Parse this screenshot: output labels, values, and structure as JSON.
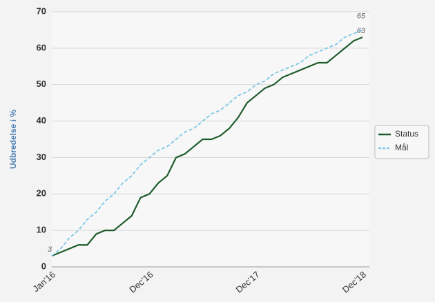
{
  "chart_data": {
    "type": "line",
    "ylabel": "Udbredelse i %",
    "categories": [
      "Jan'16",
      null,
      null,
      null,
      null,
      null,
      null,
      null,
      null,
      null,
      null,
      "Dec'16",
      null,
      null,
      null,
      null,
      null,
      null,
      null,
      null,
      null,
      null,
      null,
      "Dec'17",
      null,
      null,
      null,
      null,
      null,
      null,
      null,
      null,
      null,
      null,
      null,
      "Dec'18"
    ],
    "series": [
      {
        "name": "Status",
        "color": "#1e5b2c",
        "dashed": false,
        "values": [
          3,
          4,
          5,
          6,
          6,
          9,
          10,
          10,
          12,
          14,
          19,
          20,
          23,
          25,
          30,
          31,
          33,
          35,
          35,
          36,
          38,
          41,
          45,
          47,
          49,
          50,
          52,
          53,
          54,
          55,
          56,
          56,
          58,
          60,
          62,
          63
        ],
        "value_labels": [
          "3",
          null,
          null,
          null,
          null,
          null,
          null,
          null,
          null,
          null,
          null,
          null,
          null,
          null,
          null,
          null,
          null,
          null,
          null,
          null,
          null,
          null,
          null,
          null,
          null,
          null,
          null,
          null,
          null,
          null,
          null,
          null,
          null,
          null,
          null,
          "63"
        ]
      },
      {
        "name": "Mål",
        "color": "#7cc6e6",
        "dashed": true,
        "values": [
          3,
          5,
          8,
          10,
          13,
          15,
          18,
          20,
          23,
          25,
          28,
          30,
          32,
          33,
          35,
          37,
          38,
          40,
          42,
          43,
          45,
          47,
          48,
          50,
          51,
          53,
          54,
          55,
          56,
          58,
          59,
          60,
          61,
          63,
          64,
          65
        ],
        "value_labels": [
          null,
          null,
          null,
          null,
          null,
          null,
          null,
          null,
          null,
          null,
          null,
          null,
          null,
          null,
          null,
          null,
          null,
          null,
          null,
          null,
          null,
          null,
          null,
          null,
          null,
          null,
          null,
          null,
          null,
          null,
          null,
          null,
          null,
          null,
          null,
          "65"
        ]
      }
    ],
    "ylim": [
      0,
      70
    ],
    "yticks": [
      0,
      10,
      20,
      30,
      40,
      50,
      60,
      70
    ],
    "grid": true,
    "legend": "right"
  }
}
